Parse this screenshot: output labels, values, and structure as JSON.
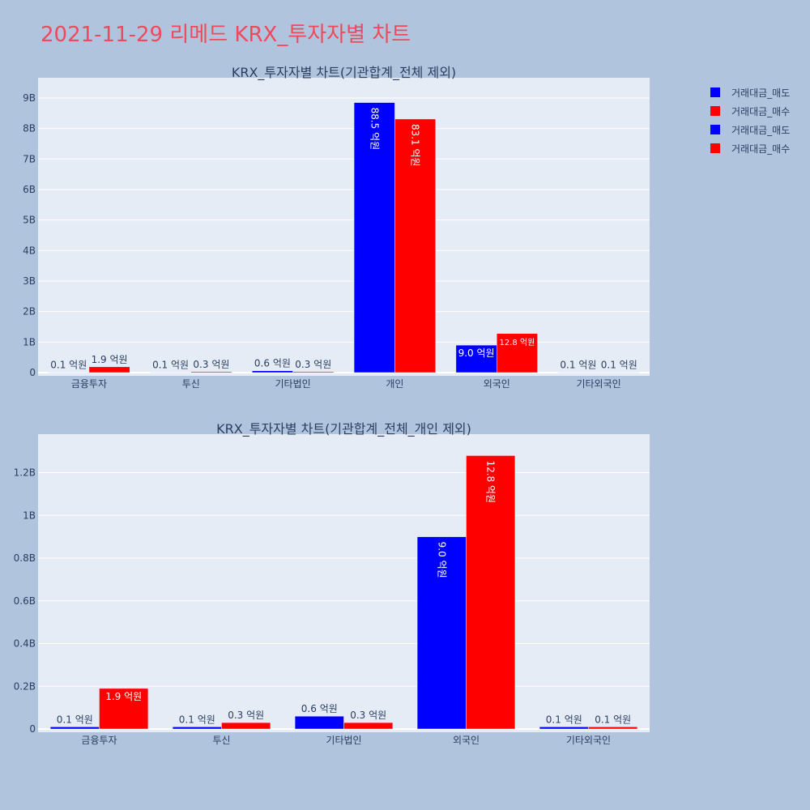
{
  "title": "2021-11-29 리메드 KRX_투자자별 차트",
  "colors": {
    "sell": "#0000ff",
    "buy": "#ff0000",
    "plot_bg": "#e5ecf6",
    "page_bg": "#b0c4de",
    "title": "#ef4a5c"
  },
  "legend": [
    {
      "label": "거래대금_매도",
      "color": "#0000ff"
    },
    {
      "label": "거래대금_매수",
      "color": "#ff0000"
    },
    {
      "label": "거래대금_매도",
      "color": "#0000ff"
    },
    {
      "label": "거래대금_매수",
      "color": "#ff0000"
    }
  ],
  "chart_data": [
    {
      "type": "bar",
      "title": "KRX_투자자별 차트(기관합계_전체 제외)",
      "categories": [
        "금융투자",
        "투신",
        "기타법인",
        "개인",
        "외국인",
        "기타외국인"
      ],
      "series": [
        {
          "name": "거래대금_매도",
          "color": "#0000ff",
          "values": [
            10000000,
            10000000,
            60000000,
            8850000000,
            900000000,
            10000000
          ],
          "labels": [
            "0.1 억원",
            "0.1 억원",
            "0.6 억원",
            "88.5 억원",
            "9.0 억원",
            "0.1 억원"
          ]
        },
        {
          "name": "거래대금_매수",
          "color": "#ff0000",
          "values": [
            190000000,
            30000000,
            30000000,
            8310000000,
            1280000000,
            10000000
          ],
          "labels": [
            "1.9 억원",
            "0.3 억원",
            "0.3 억원",
            "83.1 억원",
            "12.8 억원",
            "0.1 억원"
          ]
        }
      ],
      "yticks": [
        "0",
        "1B",
        "2B",
        "3B",
        "4B",
        "5B",
        "6B",
        "7B",
        "8B",
        "9B"
      ],
      "ytick_values": [
        0,
        1000000000,
        2000000000,
        3000000000,
        4000000000,
        5000000000,
        6000000000,
        7000000000,
        8000000000,
        9000000000
      ],
      "ylim": [
        0,
        9450000000
      ],
      "grid": true
    },
    {
      "type": "bar",
      "title": "KRX_투자자별 차트(기관합계_전체_개인 제외)",
      "categories": [
        "금융투자",
        "투신",
        "기타법인",
        "외국인",
        "기타외국인"
      ],
      "series": [
        {
          "name": "거래대금_매도",
          "color": "#0000ff",
          "values": [
            10000000,
            10000000,
            60000000,
            900000000,
            10000000
          ],
          "labels": [
            "0.1 억원",
            "0.1 억원",
            "0.6 억원",
            "9.0 억원",
            "0.1 억원"
          ]
        },
        {
          "name": "거래대금_매수",
          "color": "#ff0000",
          "values": [
            190000000,
            30000000,
            30000000,
            1280000000,
            10000000
          ],
          "labels": [
            "1.9 억원",
            "0.3 억원",
            "0.3 억원",
            "12.8 억원",
            "0.1 억원"
          ]
        }
      ],
      "yticks": [
        "0",
        "0.2B",
        "0.4B",
        "0.6B",
        "0.8B",
        "1B",
        "1.2B"
      ],
      "ytick_values": [
        0,
        200000000,
        400000000,
        600000000,
        800000000,
        1000000000,
        1200000000
      ],
      "ylim": [
        0,
        1350000000
      ],
      "grid": true
    }
  ]
}
